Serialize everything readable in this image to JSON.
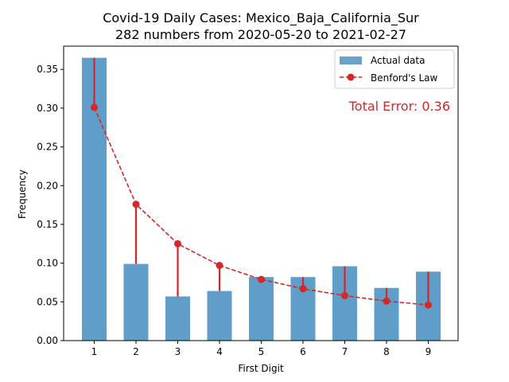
{
  "chart_data": {
    "type": "bar",
    "title": "Covid-19 Daily Cases: Mexico_Baja_California_Sur",
    "subtitle": "282 numbers from 2020-05-20 to 2021-02-27",
    "xlabel": "First Digit",
    "ylabel": "Frequency",
    "categories": [
      "1",
      "2",
      "3",
      "4",
      "5",
      "6",
      "7",
      "8",
      "9"
    ],
    "ylim": [
      0,
      0.38
    ],
    "yticks": [
      0.0,
      0.05,
      0.1,
      0.15,
      0.2,
      0.25,
      0.3,
      0.35
    ],
    "ytick_labels": [
      "0.00",
      "0.05",
      "0.10",
      "0.15",
      "0.20",
      "0.25",
      "0.30",
      "0.35"
    ],
    "legend_position": "top-right",
    "series": [
      {
        "name": "Actual data",
        "type": "bar",
        "color": "#5f9ec8",
        "values": [
          0.365,
          0.099,
          0.057,
          0.064,
          0.082,
          0.082,
          0.096,
          0.068,
          0.089
        ]
      },
      {
        "name": "Benford's Law",
        "type": "line",
        "color": "#d62728",
        "values": [
          0.301,
          0.176,
          0.125,
          0.097,
          0.079,
          0.067,
          0.058,
          0.051,
          0.046
        ]
      }
    ],
    "annotation": {
      "text": "Total Error: 0.36",
      "color": "#d62728"
    }
  }
}
